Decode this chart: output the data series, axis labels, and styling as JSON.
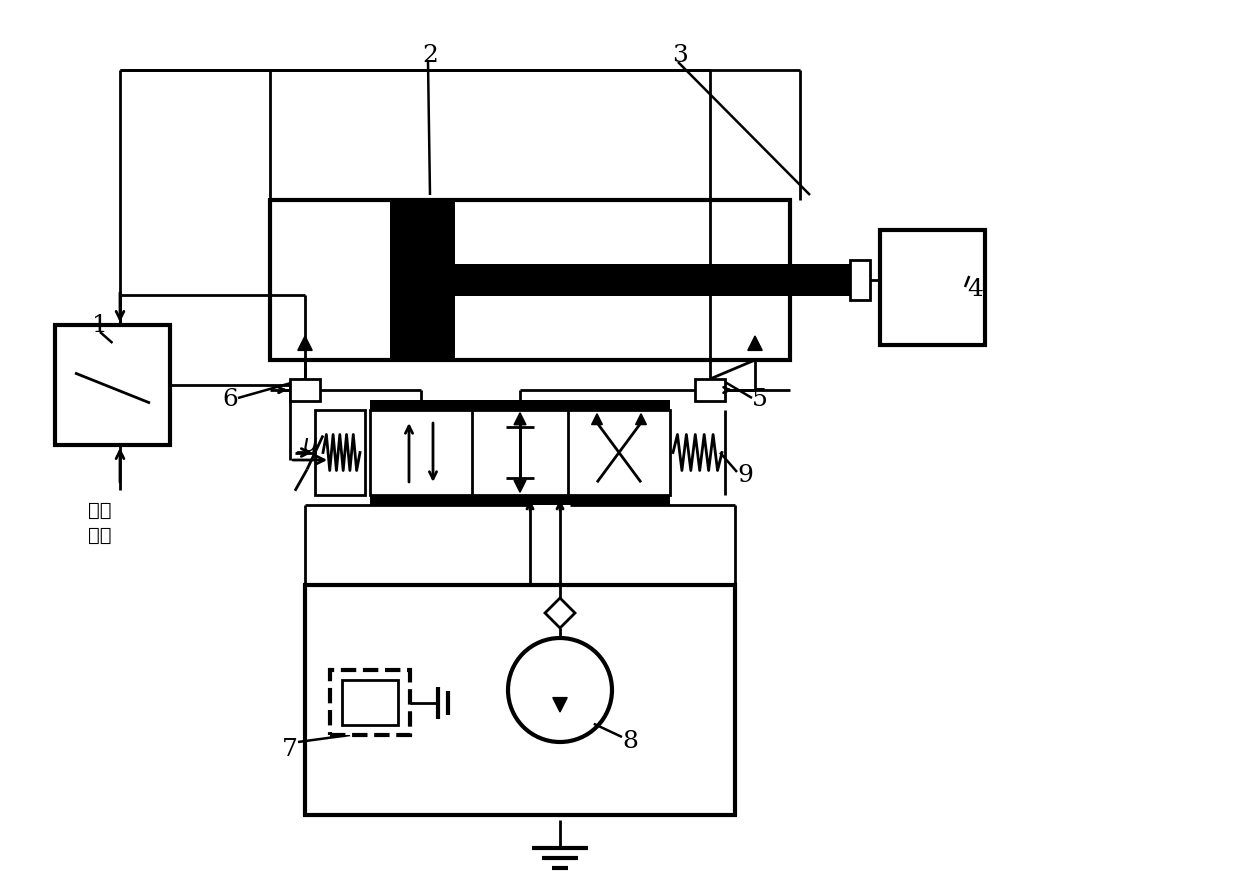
{
  "background_color": "#ffffff",
  "line_color": "#000000",
  "line_width": 2.0
}
